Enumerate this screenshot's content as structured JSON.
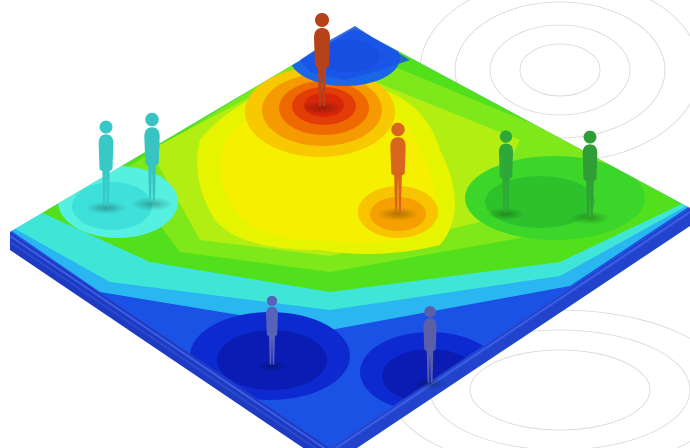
{
  "scene": {
    "subject": "isometric-contour-heatmap",
    "colors": {
      "background": "#ffffff",
      "contour_lines": "#d6d6d6",
      "slab_side": "#1f3fc4",
      "hot": "#d8260a",
      "warm": "#f5a000",
      "yellow": "#f6f000",
      "green": "#52e01c",
      "cyan": "#3fe6d8",
      "blue": "#1a52e6",
      "deep_blue": "#0b1fb8"
    },
    "figures": [
      {
        "name": "red-figure",
        "color": "#b6421a"
      },
      {
        "name": "orange-figure",
        "color": "#d8661c"
      },
      {
        "name": "cyan-figure-1",
        "color": "#38c8c6"
      },
      {
        "name": "cyan-figure-2",
        "color": "#38c4c0"
      },
      {
        "name": "green-figure-1",
        "color": "#2fa83a"
      },
      {
        "name": "green-figure-2",
        "color": "#2f9e36"
      },
      {
        "name": "blue-figure-1",
        "color": "#5663b8"
      },
      {
        "name": "blue-figure-2",
        "color": "#5a5fa8"
      }
    ]
  }
}
